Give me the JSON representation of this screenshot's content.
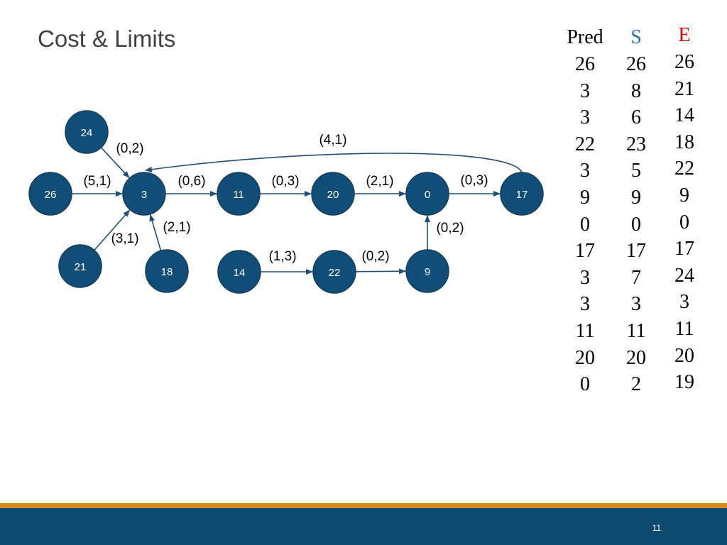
{
  "slide": {
    "title": "Cost & Limits",
    "page_number": "11"
  },
  "colors": {
    "node_fill": "#104e78",
    "node_stroke": "#1a3c57",
    "edge": "#1f4e79",
    "header_s": "#2e75b6",
    "header_e": "#e00000",
    "footer_bar": "#0e4a70",
    "footer_accent": "#d98a1e"
  },
  "graph": {
    "nodes": [
      "24",
      "26",
      "3",
      "11",
      "20",
      "0",
      "17",
      "21",
      "18",
      "14",
      "22",
      "9"
    ],
    "edges": [
      {
        "from": "24",
        "to": "3",
        "label": "(0,2)"
      },
      {
        "from": "26",
        "to": "3",
        "label": "(5,1)"
      },
      {
        "from": "21",
        "to": "3",
        "label": "(3,1)"
      },
      {
        "from": "18",
        "to": "3",
        "label": "(2,1)"
      },
      {
        "from": "3",
        "to": "11",
        "label": "(0,6)"
      },
      {
        "from": "11",
        "to": "20",
        "label": "(0,3)"
      },
      {
        "from": "20",
        "to": "0",
        "label": "(2,1)"
      },
      {
        "from": "0",
        "to": "17",
        "label": "(0,3)"
      },
      {
        "from": "17",
        "to": "3",
        "label": "(4,1)"
      },
      {
        "from": "14",
        "to": "22",
        "label": "(1,3)"
      },
      {
        "from": "22",
        "to": "9",
        "label": "(0,2)"
      },
      {
        "from": "9",
        "to": "0",
        "label": "(0,2)"
      }
    ]
  },
  "table": {
    "headers": {
      "pred": "Pred",
      "s": "S",
      "e": "E"
    },
    "pred": [
      "26",
      "3",
      "3",
      "22",
      "3",
      "9",
      "0",
      "17",
      "3",
      "3",
      "11",
      "20",
      "0"
    ],
    "s": [
      "26",
      "8",
      "6",
      "23",
      "5",
      "9",
      "0",
      "17",
      "7",
      "3",
      "11",
      "20",
      "2"
    ],
    "e": [
      "26",
      "21",
      "14",
      "18",
      "22",
      "9",
      "0",
      "17",
      "24",
      "3",
      "11",
      "20",
      "19"
    ]
  }
}
